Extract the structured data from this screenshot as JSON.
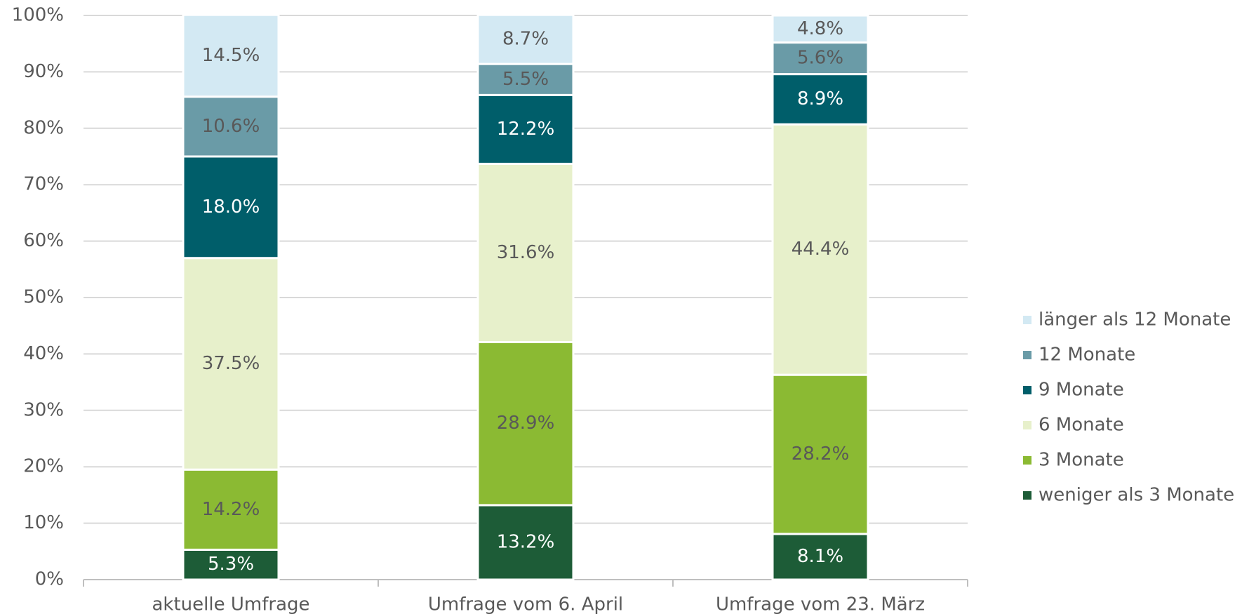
{
  "chart_data": {
    "type": "stacked_bar",
    "categories": [
      "aktuelle Umfrage",
      "Umfrage vom 6. April",
      "Umfrage vom 23. März"
    ],
    "series": [
      {
        "name": "weniger als 3 Monate",
        "color": "#1d5c37",
        "label_color": "#ffffff",
        "values": [
          5.3,
          13.2,
          8.1
        ],
        "value_labels": [
          "5.3%",
          "13.2%",
          "8.1%"
        ]
      },
      {
        "name": "3 Monate",
        "color": "#8bba33",
        "label_color": "#595959",
        "values": [
          14.2,
          28.9,
          28.2
        ],
        "value_labels": [
          "14.2%",
          "28.9%",
          "28.2%"
        ]
      },
      {
        "name": "6 Monate",
        "color": "#e7f0cb",
        "label_color": "#595959",
        "values": [
          37.5,
          31.6,
          44.4
        ],
        "value_labels": [
          "37.5%",
          "31.6%",
          "44.4%"
        ]
      },
      {
        "name": "9 Monate",
        "color": "#005e6a",
        "label_color": "#ffffff",
        "values": [
          18.0,
          12.2,
          8.9
        ],
        "value_labels": [
          "18.0%",
          "12.2%",
          "8.9%"
        ]
      },
      {
        "name": "12 Monate",
        "color": "#6a9ba7",
        "label_color": "#595959",
        "values": [
          10.6,
          5.5,
          5.6
        ],
        "value_labels": [
          "10.6%",
          "5.5%",
          "5.6%"
        ]
      },
      {
        "name": "länger als 12 Monate",
        "color": "#d3e9f3",
        "label_color": "#595959",
        "values": [
          14.5,
          8.7,
          4.8
        ],
        "value_labels": [
          "14.5%",
          "8.7%",
          "4.8%"
        ]
      }
    ],
    "ylim": [
      0,
      100
    ],
    "yticks": [
      {
        "value": 0,
        "label": "0%"
      },
      {
        "value": 10,
        "label": "10%"
      },
      {
        "value": 20,
        "label": "20%"
      },
      {
        "value": 30,
        "label": "30%"
      },
      {
        "value": 40,
        "label": "40%"
      },
      {
        "value": 50,
        "label": "50%"
      },
      {
        "value": 60,
        "label": "60%"
      },
      {
        "value": 70,
        "label": "70%"
      },
      {
        "value": 80,
        "label": "80%"
      },
      {
        "value": 90,
        "label": "90%"
      },
      {
        "value": 100,
        "label": "100%"
      }
    ],
    "grid": true,
    "legend": "right"
  }
}
